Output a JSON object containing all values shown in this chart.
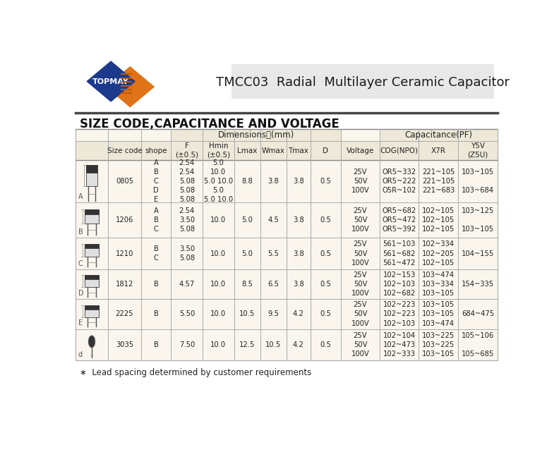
{
  "title_product": "TMCC03  Radial  Multilayer Ceramic Capacitor",
  "section_title": "SIZE CODE,CAPACITANCE AND VOLTAGE",
  "footer": "∗  Lead spacing determined by customer requirements",
  "bg_color": "#FFFFFF",
  "table_bg": "#FAF6EE",
  "table_header_bg": "#EDE8D8",
  "border_color": "#AAAAAA",
  "topmay_blue": "#1B3A8C",
  "topmay_orange": "#E07318",
  "rows": [
    {
      "size_code": "0805",
      "shape": "A\nB\nC\nD\nE",
      "F": "2.54\n2.54\n5.08\n5.08\n5.08",
      "Hmin": "5.0\n10.0\n5.0 10.0\n5.0\n5.0 10.0",
      "Lmax": "8.8",
      "Wmax": "3.8",
      "Tmax": "3.8",
      "D": "0.5",
      "Voltage": "25V\n50V\n100V",
      "COG": "OR5—332\nOR5—222\nO5R—102",
      "X7R": "221—105\n221—105\n221—683",
      "Y5V": "103—105\n\n103—684",
      "sketch": "A"
    },
    {
      "size_code": "1206",
      "shape": "A\nB\nC",
      "F": "2.54\n3.50\n5.08",
      "Hmin": "10.0",
      "Lmax": "5.0",
      "Wmax": "4.5",
      "Tmax": "3.8",
      "D": "0.5",
      "Voltage": "25V\n50V\n100V",
      "COG": "OR5—682\nOR5—472\nOR5—392",
      "X7R": "102—105\n102—105\n102—105",
      "Y5V": "103—125\n\n103—105",
      "sketch": "B"
    },
    {
      "size_code": "1210",
      "shape": "B\nC",
      "F": "3.50\n5.08",
      "Hmin": "10.0",
      "Lmax": "5.0",
      "Wmax": "5.5",
      "Tmax": "3.8",
      "D": "0.5",
      "Voltage": "25V\n50V\n100V",
      "COG": "561—103\n561—682\n561—472",
      "X7R": "102—334\n102—205\n102—105",
      "Y5V": "104—155",
      "sketch": "C"
    },
    {
      "size_code": "1812",
      "shape": "B",
      "F": "4.57",
      "Hmin": "10.0",
      "Lmax": "8.5",
      "Wmax": "6.5",
      "Tmax": "3.8",
      "D": "0.5",
      "Voltage": "25V\n50V\n100V",
      "COG": "102—153\n102—103\n102—682",
      "X7R": "103—474\n103—334\n103—105",
      "Y5V": "154—335",
      "sketch": "D"
    },
    {
      "size_code": "2225",
      "shape": "B",
      "F": "5.50",
      "Hmin": "10.0",
      "Lmax": "10.5",
      "Wmax": "9.5",
      "Tmax": "4.2",
      "D": "0.5",
      "Voltage": "25V\n50V\n100V",
      "COG": "102—223\n102—223\n102—103",
      "X7R": "103—105\n103—105\n103—474",
      "Y5V": "684—475",
      "sketch": "E"
    },
    {
      "size_code": "3035",
      "shape": "B",
      "F": "7.50",
      "Hmin": "10.0",
      "Lmax": "12.5",
      "Wmax": "10.5",
      "Tmax": "4.2",
      "D": "0.5",
      "Voltage": "25V\n50V\n100V",
      "COG": "102—104\n102—473\n102—333",
      "X7R": "103—225\n103—225\n103—105",
      "Y5V": "105—106\n\n105—685",
      "sketch": "d"
    }
  ]
}
